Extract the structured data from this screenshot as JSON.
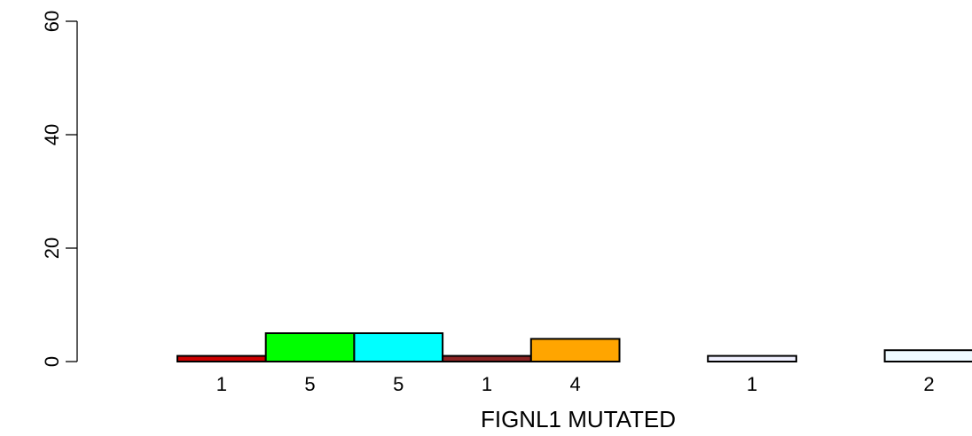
{
  "chart_data": {
    "type": "bar",
    "title": "",
    "xlabel": "FIGNL1 MUTATED",
    "ylabel": "",
    "ylim": [
      0,
      60
    ],
    "yticks": [
      "0",
      "20",
      "40",
      "60"
    ],
    "grid": false,
    "legend": "none",
    "bars": [
      {
        "label": "1",
        "value": 1,
        "color": "#cc0000"
      },
      {
        "label": "5",
        "value": 5,
        "color": "#00ff00"
      },
      {
        "label": "5",
        "value": 5,
        "color": "#00ffff"
      },
      {
        "label": "1",
        "value": 1,
        "color": "#8b2323"
      },
      {
        "label": "4",
        "value": 4,
        "color": "#ffa500"
      },
      {
        "label": "",
        "value": 0,
        "color": "#ffffff"
      },
      {
        "label": "1",
        "value": 1,
        "color": "#f0f0ff"
      },
      {
        "label": "",
        "value": 0,
        "color": "#ffffff"
      },
      {
        "label": "2",
        "value": 2,
        "color": "#eefaff"
      }
    ]
  }
}
